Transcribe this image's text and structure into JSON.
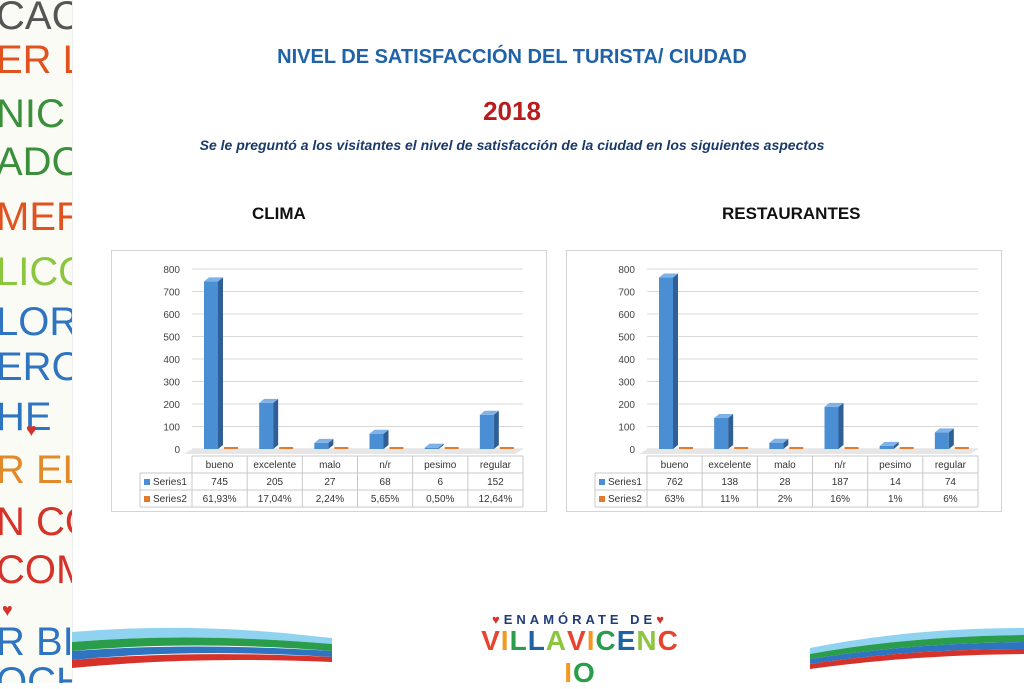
{
  "header": {
    "title": "NIVEL DE SATISFACCIÓN DEL TURISTA/ CIUDAD",
    "year": "2018",
    "subtitle": "Se le preguntó a los visitantes el nivel de satisfacción de la ciudad en los siguientes aspectos"
  },
  "side_words": [
    {
      "text": "CACHA",
      "color": "#555555"
    },
    {
      "text": "ER LLAN",
      "color": "#e0531e"
    },
    {
      "text": "NIC",
      "color": "#3a8f3a"
    },
    {
      "text": "ADORE",
      "color": "#3a8f3a"
    },
    {
      "text": "MER EL F",
      "color": "#e0531e"
    },
    {
      "text": "LICON",
      "color": "#8cc63f"
    },
    {
      "text": "LOR",
      "color": "#2e74c0"
    },
    {
      "text": "ERO",
      "color": "#2e74c0"
    },
    {
      "text": "HE",
      "color": "#2e74c0"
    },
    {
      "text": "R EL PARQ",
      "color": "#e08a2a"
    },
    {
      "text": "N CON",
      "color": "#d6322a"
    },
    {
      "text": "COMER",
      "color": "#d6322a"
    },
    {
      "text": "R BICIC",
      "color": "#2e74c0"
    },
    {
      "text": "OCHE",
      "color": "#2e74c0"
    }
  ],
  "logo": {
    "top_text": "ENAMÓRATE DE",
    "main_text": "VILLAVICENCIO",
    "colors": [
      "#e8432d",
      "#f29a1f",
      "#2a9d4a",
      "#1f62a8",
      "#8cc63f"
    ]
  },
  "chart_data": [
    {
      "type": "bar",
      "title": "CLIMA",
      "categories": [
        "bueno",
        "excelente",
        "malo",
        "n/r",
        "pesimo",
        "regular"
      ],
      "series": [
        {
          "name": "Series1",
          "values": [
            745,
            205,
            27,
            68,
            6,
            152
          ],
          "labels": [
            "745",
            "205",
            "27",
            "68",
            "6",
            "152"
          ],
          "color": "#4a8fd4"
        },
        {
          "name": "Series2",
          "values": [
            0.6193,
            0.1704,
            0.0224,
            0.0565,
            0.005,
            0.1264
          ],
          "labels": [
            "61,93%",
            "17,04%",
            "2,24%",
            "5,65%",
            "0,50%",
            "12,64%"
          ],
          "color": "#e07a2f"
        }
      ],
      "yticks": [
        "0",
        "100",
        "200",
        "300",
        "400",
        "500",
        "600",
        "700",
        "800"
      ],
      "ylim": [
        0,
        800
      ],
      "grid": true,
      "legend": "data-table"
    },
    {
      "type": "bar",
      "title": "RESTAURANTES",
      "categories": [
        "bueno",
        "excelente",
        "malo",
        "n/r",
        "pesimo",
        "regular"
      ],
      "series": [
        {
          "name": "Series1",
          "values": [
            762,
            138,
            28,
            187,
            14,
            74
          ],
          "labels": [
            "762",
            "138",
            "28",
            "187",
            "14",
            "74"
          ],
          "color": "#4a8fd4"
        },
        {
          "name": "Series2",
          "values": [
            0.63,
            0.11,
            0.02,
            0.16,
            0.01,
            0.06
          ],
          "labels": [
            "63%",
            "11%",
            "2%",
            "16%",
            "1%",
            "6%"
          ],
          "color": "#e07a2f"
        }
      ],
      "yticks": [
        "0",
        "100",
        "200",
        "300",
        "400",
        "500",
        "600",
        "700",
        "800"
      ],
      "ylim": [
        0,
        800
      ],
      "grid": true,
      "legend": "data-table"
    }
  ]
}
